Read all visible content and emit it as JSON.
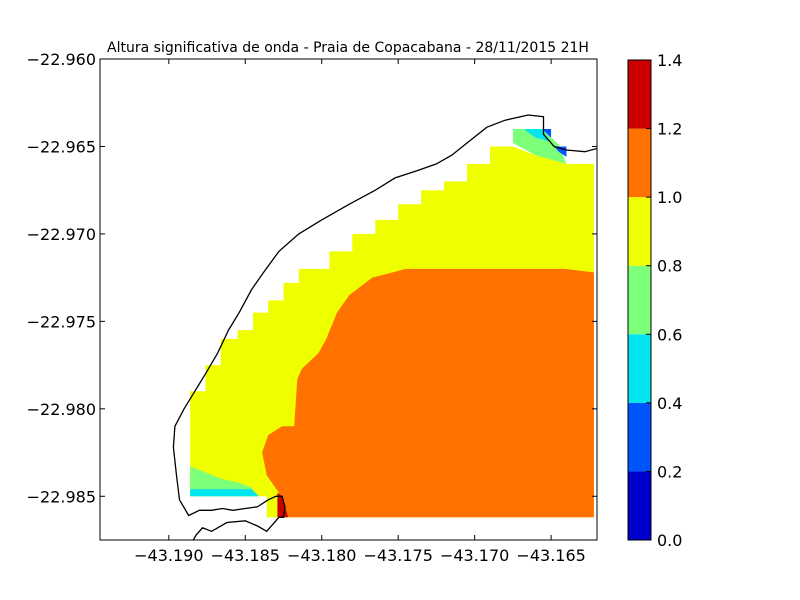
{
  "chart_data": {
    "type": "heatmap",
    "title": "Altura significativa de onda - Praia de Copacabana - 28/11/2015 21H",
    "xlabel": "",
    "ylabel": "",
    "xlim": [
      -43.1945,
      -43.162
    ],
    "ylim": [
      -22.9875,
      -22.96
    ],
    "x_ticks": [
      -43.19,
      -43.185,
      -43.18,
      -43.175,
      -43.17,
      -43.165
    ],
    "x_tick_labels": [
      "−43.190",
      "−43.185",
      "−43.180",
      "−43.175",
      "−43.170",
      "−43.165"
    ],
    "y_ticks": [
      -22.96,
      -22.965,
      -22.97,
      -22.975,
      -22.98,
      -22.985
    ],
    "y_tick_labels": [
      "−22.960",
      "−22.965",
      "−22.970",
      "−22.975",
      "−22.980",
      "−22.985"
    ],
    "grid": false,
    "colorbar": {
      "range": [
        0.0,
        1.4
      ],
      "ticks": [
        0.0,
        0.2,
        0.4,
        0.6,
        0.8,
        1.0,
        1.2,
        1.4
      ],
      "tick_labels": [
        "0.0",
        "0.2",
        "0.4",
        "0.6",
        "0.8",
        "1.0",
        "1.2",
        "1.4"
      ],
      "levels": [
        {
          "min": 0.0,
          "max": 0.2,
          "color": "#0000cd"
        },
        {
          "min": 0.2,
          "max": 0.4,
          "color": "#0055ff"
        },
        {
          "min": 0.4,
          "max": 0.6,
          "color": "#00e5ee"
        },
        {
          "min": 0.6,
          "max": 0.8,
          "color": "#7cff79"
        },
        {
          "min": 0.8,
          "max": 1.0,
          "color": "#f0ff00"
        },
        {
          "min": 1.0,
          "max": 1.2,
          "color": "#ff7100"
        },
        {
          "min": 1.2,
          "max": 1.4,
          "color": "#cc0000"
        }
      ]
    },
    "regions": [
      {
        "level": 0.9,
        "color": "#f0ff00",
        "polygon": [
          [
            -43.1886,
            -22.981
          ],
          [
            -43.1886,
            -22.979
          ],
          [
            -43.1876,
            -22.979
          ],
          [
            -43.1876,
            -22.9775
          ],
          [
            -43.1866,
            -22.9775
          ],
          [
            -43.1866,
            -22.976
          ],
          [
            -43.1855,
            -22.976
          ],
          [
            -43.1855,
            -22.9755
          ],
          [
            -43.1845,
            -22.9755
          ],
          [
            -43.1845,
            -22.9745
          ],
          [
            -43.1835,
            -22.9745
          ],
          [
            -43.1835,
            -22.9738
          ],
          [
            -43.1825,
            -22.9738
          ],
          [
            -43.1825,
            -22.9728
          ],
          [
            -43.1815,
            -22.9728
          ],
          [
            -43.1815,
            -22.972
          ],
          [
            -43.1795,
            -22.972
          ],
          [
            -43.1795,
            -22.971
          ],
          [
            -43.178,
            -22.971
          ],
          [
            -43.178,
            -22.97
          ],
          [
            -43.1765,
            -22.97
          ],
          [
            -43.1765,
            -22.9692
          ],
          [
            -43.175,
            -22.9692
          ],
          [
            -43.175,
            -22.9683
          ],
          [
            -43.1735,
            -22.9683
          ],
          [
            -43.1735,
            -22.9675
          ],
          [
            -43.172,
            -22.9675
          ],
          [
            -43.172,
            -22.967
          ],
          [
            -43.1705,
            -22.967
          ],
          [
            -43.1705,
            -22.966
          ],
          [
            -43.169,
            -22.966
          ],
          [
            -43.169,
            -22.965
          ],
          [
            -43.1675,
            -22.965
          ],
          [
            -43.166,
            -22.9655
          ],
          [
            -43.164,
            -22.966
          ],
          [
            -43.1622,
            -22.966
          ],
          [
            -43.1622,
            -22.9862
          ],
          [
            -43.1836,
            -22.9862
          ],
          [
            -43.1836,
            -22.985
          ],
          [
            -43.1886,
            -22.985
          ]
        ]
      },
      {
        "level": 1.1,
        "color": "#ff7100",
        "polygon": [
          [
            -43.1622,
            -22.9722
          ],
          [
            -43.1641,
            -22.972
          ],
          [
            -43.1745,
            -22.972
          ],
          [
            -43.1767,
            -22.9725
          ],
          [
            -43.1782,
            -22.9735
          ],
          [
            -43.179,
            -22.9745
          ],
          [
            -43.1797,
            -22.976
          ],
          [
            -43.1802,
            -22.9768
          ],
          [
            -43.1808,
            -22.9773
          ],
          [
            -43.1813,
            -22.9777
          ],
          [
            -43.1816,
            -22.9783
          ],
          [
            -43.1818,
            -22.981
          ],
          [
            -43.1826,
            -22.981
          ],
          [
            -43.1835,
            -22.9815
          ],
          [
            -43.1839,
            -22.9825
          ],
          [
            -43.1836,
            -22.9838
          ],
          [
            -43.1828,
            -22.9848
          ],
          [
            -43.1826,
            -22.9862
          ],
          [
            -43.1622,
            -22.9862
          ]
        ]
      },
      {
        "level": 1.3,
        "color": "#cc0000",
        "polygon": [
          [
            -43.1829,
            -22.9848
          ],
          [
            -43.1826,
            -22.985
          ],
          [
            -43.1822,
            -22.9862
          ],
          [
            -43.1829,
            -22.9862
          ]
        ]
      },
      {
        "level": 0.7,
        "color": "#7cff79",
        "polygon": [
          [
            -43.1886,
            -22.9833
          ],
          [
            -43.1877,
            -22.9836
          ],
          [
            -43.1866,
            -22.984
          ],
          [
            -43.1855,
            -22.9842
          ],
          [
            -43.1846,
            -22.9845
          ],
          [
            -43.1842,
            -22.985
          ],
          [
            -43.1886,
            -22.985
          ]
        ]
      },
      {
        "level": 0.5,
        "color": "#00e5ee",
        "polygon": [
          [
            -43.1886,
            -22.9846
          ],
          [
            -43.1846,
            -22.9846
          ],
          [
            -43.1841,
            -22.985
          ],
          [
            -43.1886,
            -22.985
          ]
        ]
      },
      {
        "level": 0.7,
        "color": "#7cff79",
        "polygon": [
          [
            -43.1675,
            -22.964
          ],
          [
            -43.1656,
            -22.964
          ],
          [
            -43.1645,
            -22.9649
          ],
          [
            -43.164,
            -22.966
          ],
          [
            -43.166,
            -22.9655
          ],
          [
            -43.1675,
            -22.9648
          ]
        ]
      },
      {
        "level": 0.5,
        "color": "#00e5ee",
        "polygon": [
          [
            -43.1668,
            -22.964
          ],
          [
            -43.1656,
            -22.964
          ],
          [
            -43.1651,
            -22.9647
          ],
          [
            -43.166,
            -22.9645
          ]
        ]
      },
      {
        "level": 0.3,
        "color": "#0055ff",
        "polygon": [
          [
            -43.1656,
            -22.964
          ],
          [
            -43.165,
            -22.964
          ],
          [
            -43.165,
            -22.9645
          ]
        ]
      },
      {
        "level": 0.3,
        "color": "#0055ff",
        "polygon": [
          [
            -43.1648,
            -22.965
          ],
          [
            -43.164,
            -22.965
          ],
          [
            -43.164,
            -22.9656
          ],
          [
            -43.1645,
            -22.9653
          ]
        ]
      }
    ],
    "coastline": [
      [
        -43.1615,
        -22.965
      ],
      [
        -43.1628,
        -22.9653
      ],
      [
        -43.164,
        -22.9652
      ],
      [
        -43.1648,
        -22.965
      ],
      [
        -43.1655,
        -22.9643
      ],
      [
        -43.1655,
        -22.9633
      ],
      [
        -43.1665,
        -22.9632
      ],
      [
        -43.168,
        -22.9635
      ],
      [
        -43.1692,
        -22.9639
      ],
      [
        -43.1705,
        -22.9648
      ],
      [
        -43.1715,
        -22.9655
      ],
      [
        -43.1725,
        -22.966
      ],
      [
        -43.1738,
        -22.9664
      ],
      [
        -43.1752,
        -22.9668
      ],
      [
        -43.1765,
        -22.9675
      ],
      [
        -43.1782,
        -22.9683
      ],
      [
        -43.18,
        -22.9692
      ],
      [
        -43.1815,
        -22.97
      ],
      [
        -43.1828,
        -22.971
      ],
      [
        -43.1838,
        -22.9722
      ],
      [
        -43.1846,
        -22.9732
      ],
      [
        -43.1854,
        -22.9745
      ],
      [
        -43.1861,
        -22.9755
      ],
      [
        -43.1868,
        -22.9768
      ],
      [
        -43.1876,
        -22.978
      ],
      [
        -43.1883,
        -22.979
      ],
      [
        -43.189,
        -22.98
      ],
      [
        -43.1896,
        -22.981
      ],
      [
        -43.1897,
        -22.9822
      ],
      [
        -43.1895,
        -22.9838
      ],
      [
        -43.1893,
        -22.9852
      ],
      [
        -43.1887,
        -22.9861
      ],
      [
        -43.188,
        -22.9858
      ],
      [
        -43.1872,
        -22.9858
      ],
      [
        -43.1865,
        -22.9857
      ],
      [
        -43.1858,
        -22.9858
      ],
      [
        -43.185,
        -22.9857
      ],
      [
        -43.1842,
        -22.9856
      ],
      [
        -43.1835,
        -22.9852
      ],
      [
        -43.183,
        -22.985
      ],
      [
        -43.1826,
        -22.985
      ],
      [
        -43.1824,
        -22.9856
      ],
      [
        -43.1825,
        -22.9862
      ],
      [
        -43.1828,
        -22.9862
      ],
      [
        -43.1832,
        -22.9866
      ],
      [
        -43.1836,
        -22.987
      ],
      [
        -43.1842,
        -22.9867
      ],
      [
        -43.185,
        -22.9864
      ],
      [
        -43.1862,
        -22.9865
      ],
      [
        -43.1872,
        -22.987
      ],
      [
        -43.1878,
        -22.9868
      ],
      [
        -43.1882,
        -22.9872
      ],
      [
        -43.1886,
        -22.9878
      ]
    ]
  }
}
